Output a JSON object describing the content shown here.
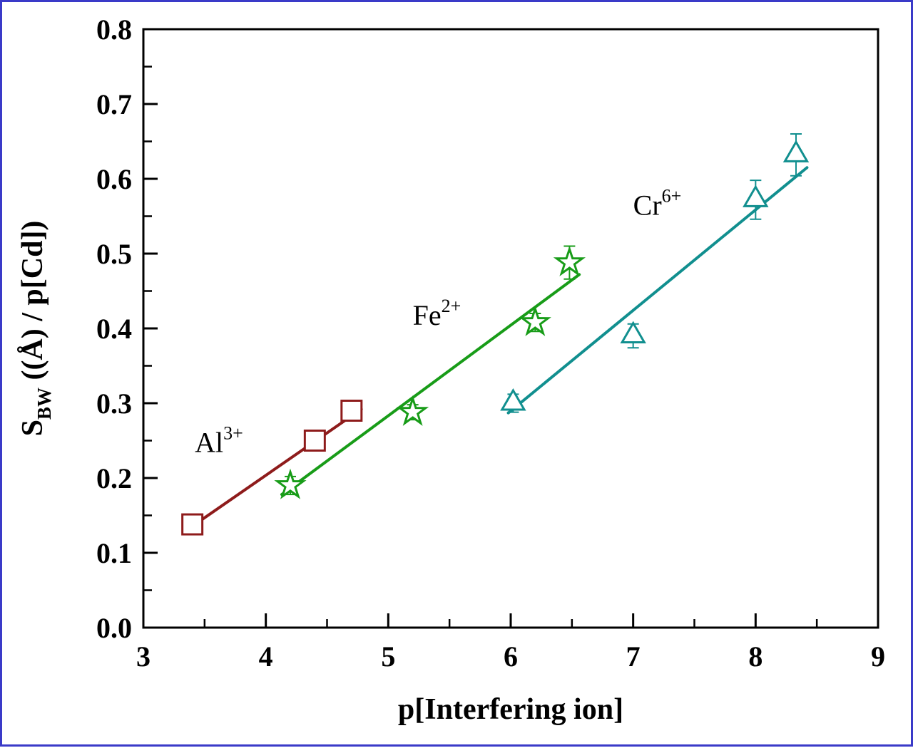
{
  "page": {
    "border_color": "#3a3ac8",
    "background": "#ffffff"
  },
  "chart_data": {
    "type": "scatter",
    "title": "",
    "xlabel": "p[Interfering ion]",
    "ylabel_main": "S",
    "ylabel_sub": "BW",
    "ylabel_rest": " ((Å) / p[Cd])",
    "xlim": [
      3,
      9
    ],
    "ylim": [
      0.0,
      0.8
    ],
    "grid": false,
    "legend": "inline-series-labels",
    "x_major_ticks": [
      3,
      4,
      5,
      6,
      7,
      8,
      9
    ],
    "x_tick_labels": [
      "3",
      "4",
      "5",
      "6",
      "7",
      "8",
      "9"
    ],
    "x_minor_ticks": [
      3.5,
      4.5,
      5.5,
      6.5,
      7.5,
      8.5
    ],
    "y_major_ticks": [
      0.0,
      0.1,
      0.2,
      0.3,
      0.4,
      0.5,
      0.6,
      0.7,
      0.8
    ],
    "y_tick_labels": [
      "0.0",
      "0.1",
      "0.2",
      "0.3",
      "0.4",
      "0.5",
      "0.6",
      "0.7",
      "0.8"
    ],
    "y_minor_ticks": [
      0.05,
      0.15,
      0.25,
      0.35,
      0.45,
      0.55,
      0.65,
      0.75
    ],
    "axis_color": "#000000",
    "series": [
      {
        "name": "Al3+",
        "label": "Al",
        "label_sup": "3+",
        "marker": "square",
        "color": "#8e1b1b",
        "points": [
          {
            "x": 3.4,
            "y": 0.138,
            "err": 0.012
          },
          {
            "x": 4.4,
            "y": 0.25,
            "err": 0.007
          },
          {
            "x": 4.7,
            "y": 0.29,
            "err": 0.007
          }
        ],
        "fit_line": {
          "x1": 3.36,
          "y1": 0.131,
          "x2": 4.78,
          "y2": 0.292
        },
        "label_pos": {
          "x": 3.42,
          "y": 0.235
        }
      },
      {
        "name": "Fe2+",
        "label": "Fe",
        "label_sup": "2+",
        "marker": "star",
        "color": "#189c18",
        "points": [
          {
            "x": 4.2,
            "y": 0.19,
            "err": 0.012
          },
          {
            "x": 5.2,
            "y": 0.288,
            "err": 0.01
          },
          {
            "x": 6.2,
            "y": 0.408,
            "err": 0.012
          },
          {
            "x": 6.48,
            "y": 0.488,
            "err": 0.022
          }
        ],
        "fit_line": {
          "x1": 4.13,
          "y1": 0.178,
          "x2": 6.56,
          "y2": 0.472
        },
        "label_pos": {
          "x": 5.2,
          "y": 0.405
        }
      },
      {
        "name": "Cr6+",
        "label": "Cr",
        "label_sup": "6+",
        "marker": "triangle",
        "color": "#118f8f",
        "points": [
          {
            "x": 6.02,
            "y": 0.3,
            "err": 0.012
          },
          {
            "x": 7.0,
            "y": 0.39,
            "err": 0.016
          },
          {
            "x": 8.0,
            "y": 0.572,
            "err": 0.026
          },
          {
            "x": 8.33,
            "y": 0.632,
            "err": 0.028
          }
        ],
        "fit_line": {
          "x1": 5.98,
          "y1": 0.287,
          "x2": 8.42,
          "y2": 0.615
        },
        "label_pos": {
          "x": 7.0,
          "y": 0.552
        }
      }
    ]
  }
}
